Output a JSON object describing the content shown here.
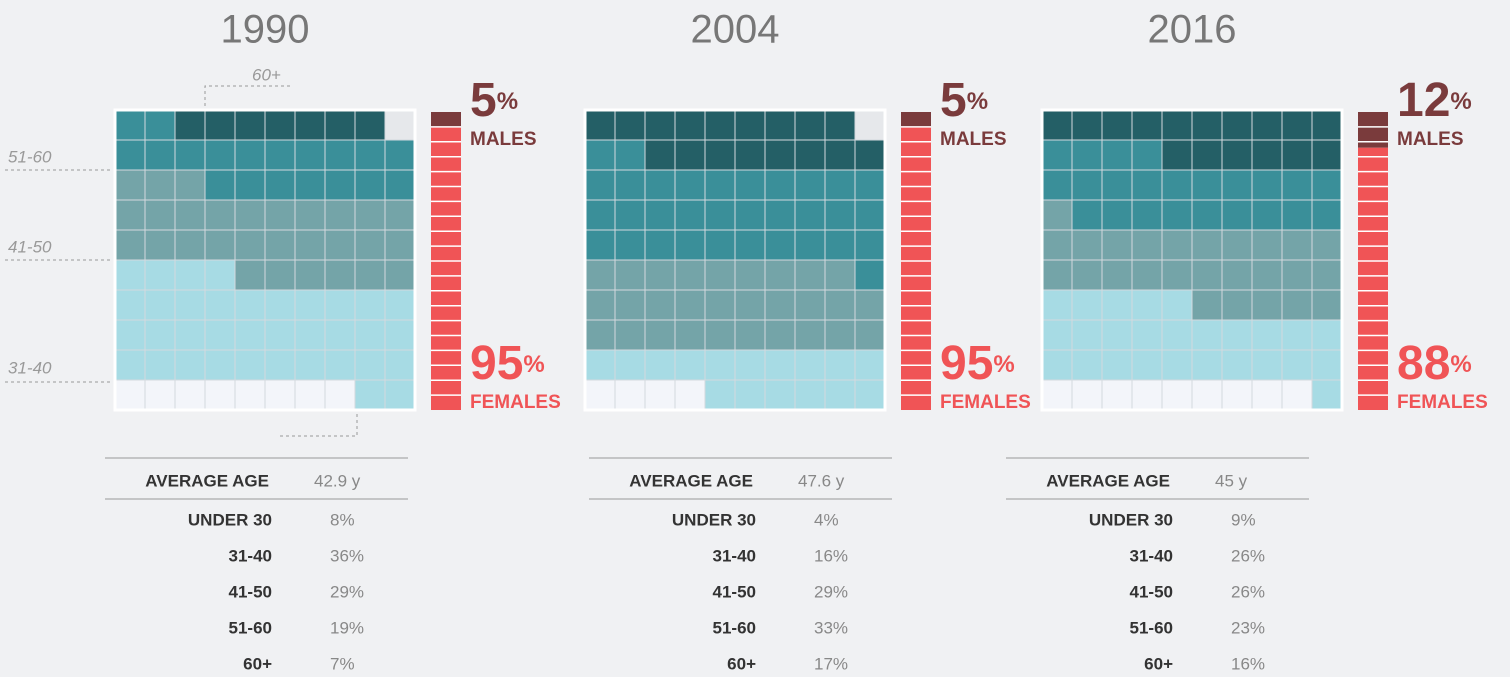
{
  "annotations": [
    "60+",
    "51-60",
    "41-50",
    "31-40"
  ],
  "group_colors": [
    "#f3f5fa",
    "#a7dbe4",
    "#74a4a8",
    "#3a8f99",
    "#245f66"
  ],
  "male_color": "#7a3b3c",
  "female_color": "#f05456",
  "panels": [
    {
      "year": "1990",
      "males": {
        "value": 5,
        "label": "5%"
      },
      "males_label": "MALES",
      "females": {
        "value": 95,
        "label": "95%"
      },
      "females_label": "FEMALES",
      "average_age_label": "AVERAGE AGE",
      "average_age": "42.9 y",
      "groups": [
        {
          "name": "UNDER 30",
          "value": 8,
          "label": "8%"
        },
        {
          "name": "31-40",
          "value": 36,
          "label": "36%"
        },
        {
          "name": "41-50",
          "value": 29,
          "label": "29%"
        },
        {
          "name": "51-60",
          "value": 19,
          "label": "19%"
        },
        {
          "name": "60+",
          "value": 7,
          "label": "7%"
        }
      ]
    },
    {
      "year": "2004",
      "males": {
        "value": 5,
        "label": "5%"
      },
      "males_label": "MALES",
      "females": {
        "value": 95,
        "label": "95%"
      },
      "females_label": "FEMALES",
      "average_age_label": "AVERAGE AGE",
      "average_age": "47.6 y",
      "groups": [
        {
          "name": "UNDER 30",
          "value": 4,
          "label": "4%"
        },
        {
          "name": "31-40",
          "value": 16,
          "label": "16%"
        },
        {
          "name": "41-50",
          "value": 29,
          "label": "29%"
        },
        {
          "name": "51-60",
          "value": 33,
          "label": "33%"
        },
        {
          "name": "60+",
          "value": 17,
          "label": "17%"
        }
      ]
    },
    {
      "year": "2016",
      "males": {
        "value": 12,
        "label": "12%"
      },
      "males_label": "MALES",
      "females": {
        "value": 88,
        "label": "88%"
      },
      "females_label": "FEMALES",
      "average_age_label": "AVERAGE AGE",
      "average_age": "45 y",
      "groups": [
        {
          "name": "UNDER 30",
          "value": 9,
          "label": "9%"
        },
        {
          "name": "31-40",
          "value": 26,
          "label": "26%"
        },
        {
          "name": "41-50",
          "value": 26,
          "label": "26%"
        },
        {
          "name": "51-60",
          "value": 23,
          "label": "23%"
        },
        {
          "name": "60+",
          "value": 16,
          "label": "16%"
        }
      ]
    }
  ]
}
